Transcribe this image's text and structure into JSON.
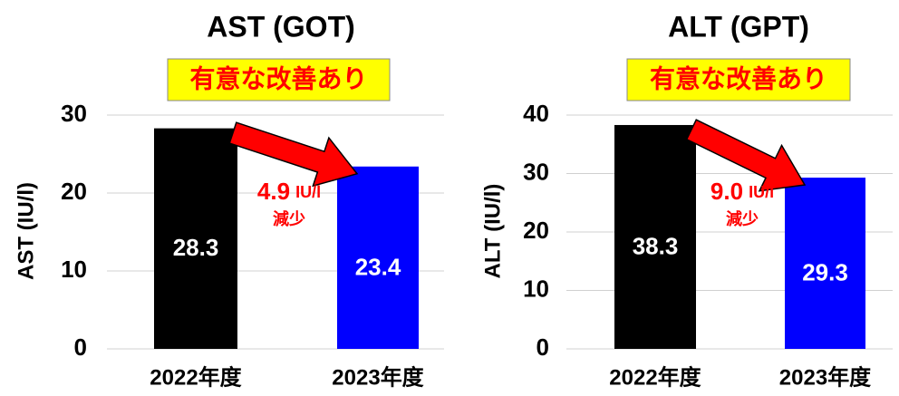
{
  "chart_data": [
    {
      "type": "bar",
      "title": "AST (GOT)",
      "ylabel": "AST (IU/l)",
      "categories": [
        "2022年度",
        "2023年度"
      ],
      "values": [
        28.3,
        23.4
      ],
      "colors": [
        "#000000",
        "#0000ff"
      ],
      "ylim": [
        0,
        30
      ],
      "yticks": [
        0,
        10,
        20,
        30
      ],
      "grid": true,
      "badge": "有意な改善あり",
      "difference": {
        "value": 4.9,
        "label": "4.9"
      },
      "difference_unit": "IU/l",
      "difference_note": "減少"
    },
    {
      "type": "bar",
      "title": "ALT (GPT)",
      "ylabel": "ALT (IU/l)",
      "categories": [
        "2022年度",
        "2023年度"
      ],
      "values": [
        38.3,
        29.3
      ],
      "colors": [
        "#000000",
        "#0000ff"
      ],
      "ylim": [
        0,
        40
      ],
      "yticks": [
        0,
        10,
        20,
        30,
        40
      ],
      "grid": true,
      "badge": "有意な改善あり",
      "difference": {
        "value": 9.0,
        "label": "9.0"
      },
      "difference_unit": "IU/l",
      "difference_note": "減少"
    }
  ]
}
